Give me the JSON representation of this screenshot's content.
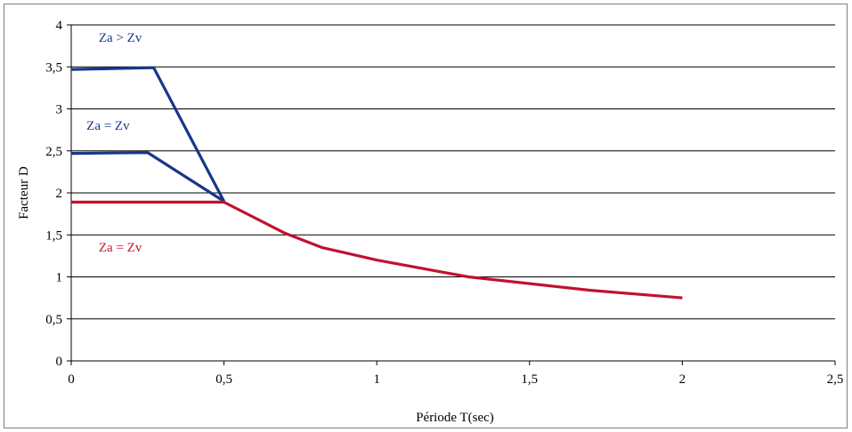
{
  "chart_data": {
    "type": "line",
    "title": "",
    "xlabel": "Période T(sec)",
    "ylabel": "Facteur D",
    "xlim": [
      0,
      2.5
    ],
    "ylim": [
      0,
      4
    ],
    "xticks": [
      0,
      0.5,
      1,
      1.5,
      2,
      2.5
    ],
    "xtick_labels": [
      "0",
      "0,5",
      "1",
      "1,5",
      "2",
      "2,5"
    ],
    "yticks": [
      0,
      0.5,
      1,
      1.5,
      2,
      2.5,
      3,
      3.5,
      4
    ],
    "ytick_labels": [
      "0",
      "0,5",
      "1",
      "1,5",
      "2",
      "2,5",
      "3",
      "3,5",
      "4"
    ],
    "grid": true,
    "series": [
      {
        "name": "Za > Zv",
        "color": "#17378b",
        "points": [
          [
            0,
            3.47
          ],
          [
            0.27,
            3.49
          ],
          [
            0.5,
            1.9
          ]
        ]
      },
      {
        "name": "Za = Zv",
        "color": "#17378b",
        "points": [
          [
            0,
            2.47
          ],
          [
            0.25,
            2.48
          ],
          [
            0.5,
            1.9
          ]
        ]
      },
      {
        "name": "Za = Zv",
        "color": "#c0122f",
        "points": [
          [
            0,
            1.89
          ],
          [
            0.5,
            1.89
          ],
          [
            0.7,
            1.52
          ],
          [
            0.82,
            1.35
          ],
          [
            1.0,
            1.2
          ],
          [
            1.3,
            1.0
          ],
          [
            1.7,
            0.84
          ],
          [
            2.0,
            0.75
          ]
        ]
      }
    ],
    "annotations": [
      {
        "text": "Za > Zv",
        "x": 0.09,
        "y": 3.8,
        "color": "#17378b"
      },
      {
        "text": "Za = Zv",
        "x": 0.05,
        "y": 2.75,
        "color": "#17378b"
      },
      {
        "text": "Za = Zv",
        "x": 0.09,
        "y": 1.3,
        "color": "#c0122f"
      }
    ]
  }
}
